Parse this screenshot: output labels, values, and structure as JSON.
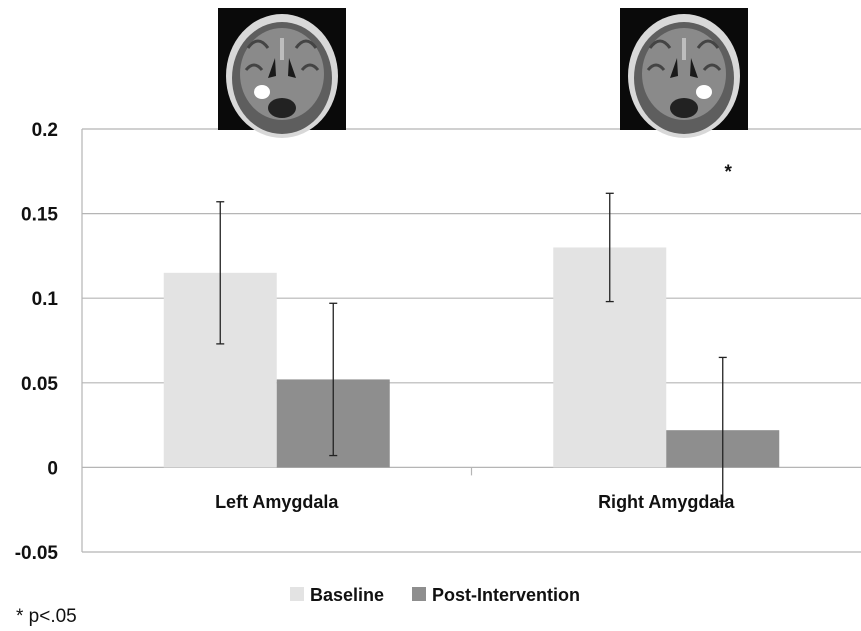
{
  "chart_data": {
    "type": "bar",
    "categories": [
      "Left Amygdala",
      "Right Amygdala"
    ],
    "series": [
      {
        "name": "Baseline",
        "color": "#e3e3e3",
        "values": [
          0.115,
          0.13
        ],
        "error_low": [
          0.073,
          0.098
        ],
        "error_high": [
          0.157,
          0.162
        ]
      },
      {
        "name": "Post-Intervention",
        "color": "#8e8e8e",
        "values": [
          0.052,
          0.022
        ],
        "error_low": [
          0.007,
          -0.02
        ],
        "error_high": [
          0.097,
          0.065
        ]
      }
    ],
    "yticks": [
      "0.2",
      "0.15",
      "0.1",
      "0.05",
      "0",
      "-0.05"
    ],
    "ylim": [
      -0.05,
      0.2
    ],
    "grid": true,
    "legend_position": "bottom-center",
    "significance_marker": "*",
    "significance_category": "Right Amygdala",
    "brain_images": [
      {
        "icon": "brain-mri-coronal-left-roi-icon",
        "highlight_side": "left"
      },
      {
        "icon": "brain-mri-coronal-right-roi-icon",
        "highlight_side": "right"
      }
    ]
  },
  "footnote": "* p<.05"
}
